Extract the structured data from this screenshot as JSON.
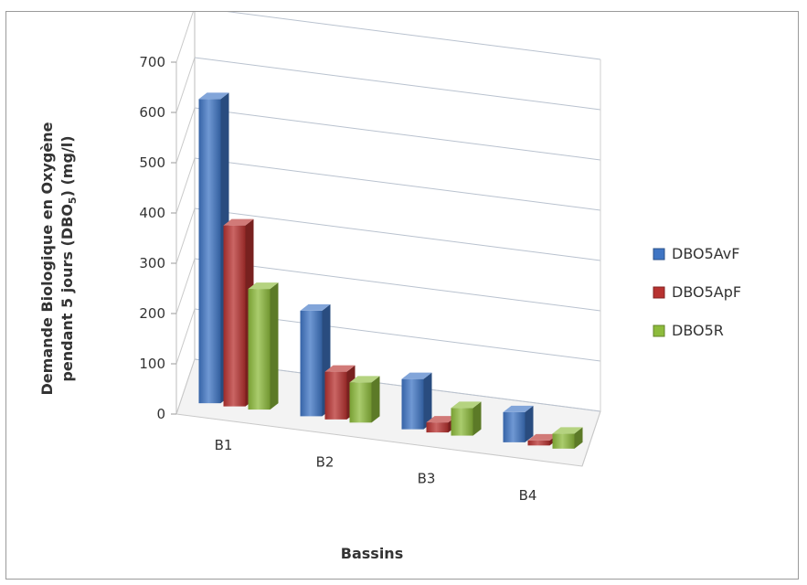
{
  "chart_data": {
    "type": "bar",
    "title": "",
    "xlabel": "Bassins",
    "ylabel_line1": "Demande Biologique en Oxygène",
    "ylabel_line2": "pendant 5 jours (DBO",
    "ylabel_sub": "5",
    "ylabel_line2_end": ") (mg/l)",
    "ylim": [
      0,
      700
    ],
    "yticks": [
      "0",
      "100",
      "200",
      "300",
      "400",
      "500",
      "600",
      "700"
    ],
    "categories": [
      "B1",
      "B2",
      "B3",
      "B4"
    ],
    "series": [
      {
        "name": "DBO5AvF",
        "color": "#3f75c4",
        "values": [
          605,
          210,
          100,
          60
        ]
      },
      {
        "name": "DBO5ApF",
        "color": "#b83230",
        "values": [
          360,
          95,
          20,
          10
        ]
      },
      {
        "name": "DBO5R",
        "color": "#8dbb3c",
        "values": [
          240,
          80,
          55,
          30
        ]
      }
    ],
    "legend_position": "right",
    "grid": true
  }
}
